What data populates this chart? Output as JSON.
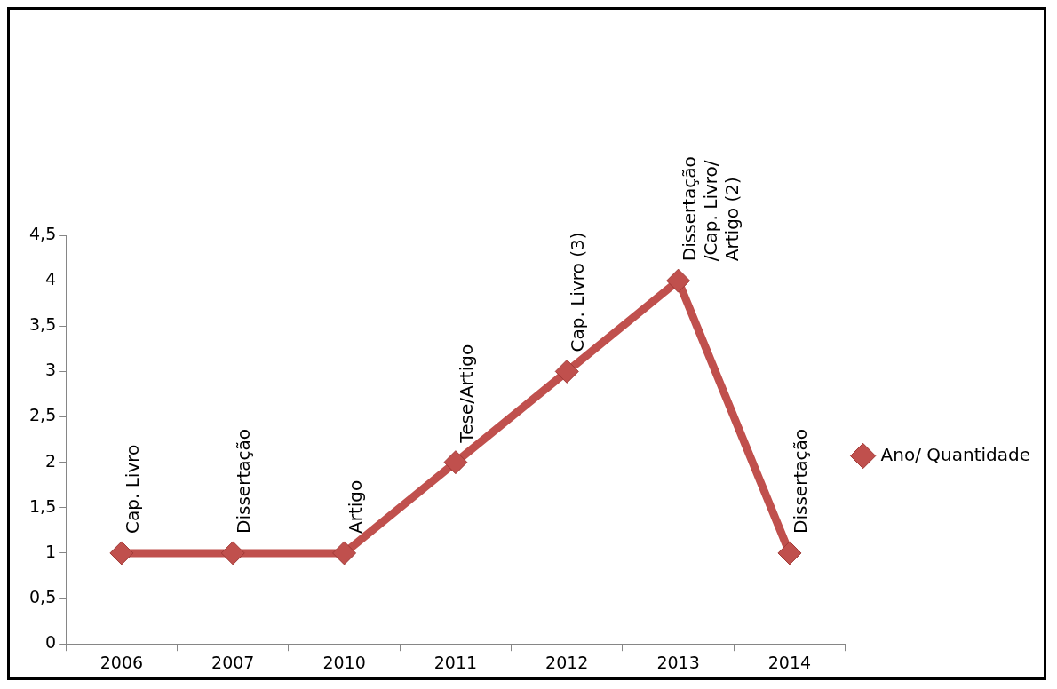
{
  "chart_data": {
    "type": "line",
    "categories": [
      "2006",
      "2007",
      "2010",
      "2011",
      "2012",
      "2013",
      "2014"
    ],
    "series": [
      {
        "name": "Ano/ Quantidade",
        "color": "#c0504d",
        "values": [
          1,
          1,
          1,
          2,
          3,
          4,
          1
        ]
      }
    ],
    "ylim": [
      0,
      4.5
    ],
    "yticks": [
      0,
      {
        "value": 0.5,
        "label": "0,5"
      },
      1,
      {
        "value": 1.5,
        "label": "1,5"
      },
      2,
      {
        "value": 2.5,
        "label": "2,5"
      },
      3,
      {
        "value": 3.5,
        "label": "3,5"
      },
      4,
      {
        "value": 4.5,
        "label": "4,5"
      }
    ],
    "grid": false,
    "legend": "right",
    "marker": "diamond",
    "line_style": "solid",
    "annotations": [
      {
        "text": "Cap. Livro",
        "x": "2006",
        "y": 1
      },
      {
        "text": "Dissertação",
        "x": "2007",
        "y": 1
      },
      {
        "text": "Artigo",
        "x": "2010",
        "y": 1
      },
      {
        "text": "Tese/Artigo",
        "x": "2011",
        "y": 2
      },
      {
        "text": "Cap. Livro (3)",
        "x": "2012",
        "y": 3
      },
      {
        "text": "Dissertação\n/Cap. Livro/\nArtigo (2)",
        "x": "2013",
        "y": 4
      },
      {
        "text": "Dissertação",
        "x": "2014",
        "y": 1
      }
    ]
  }
}
